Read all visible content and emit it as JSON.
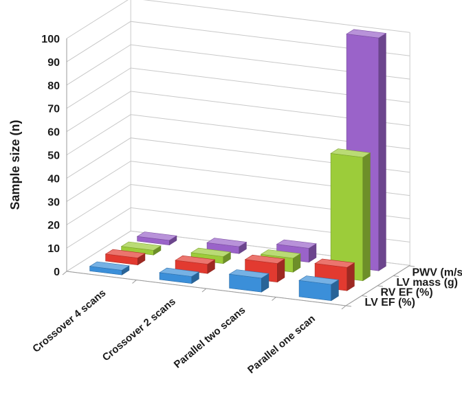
{
  "chart_data": {
    "type": "bar",
    "variant": "3d-column",
    "ylabel": "Sample size (n)",
    "ylim": [
      0,
      100
    ],
    "yticks": [
      "0",
      "10",
      "20",
      "30",
      "40",
      "50",
      "60",
      "70",
      "80",
      "90",
      "100"
    ],
    "categories": [
      "Crossover 4 scans",
      "Crossover 2 scans",
      "Parallel two scans",
      "Parallel one scan"
    ],
    "series": [
      {
        "name": "LV EF (%)",
        "color": "#3b8fd9",
        "values": [
          2,
          3,
          6,
          7
        ]
      },
      {
        "name": "RV EF (%)",
        "color": "#e23a30",
        "values": [
          3,
          4,
          8,
          10
        ]
      },
      {
        "name": "LV mass (g)",
        "color": "#9ccc3a",
        "values": [
          2,
          3,
          6,
          53
        ]
      },
      {
        "name": "PWV (m/s)",
        "color": "#9a63c9",
        "values": [
          2,
          3,
          6,
          100
        ]
      }
    ],
    "grid": true,
    "legend": "depth-axis-right"
  }
}
